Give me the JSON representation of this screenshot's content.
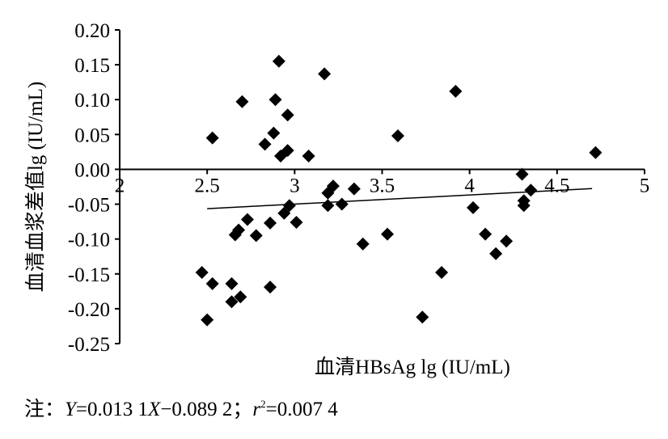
{
  "chart_data": {
    "type": "scatter",
    "x_label": "血清HBsAg lg (IU/mL)",
    "y_label": "血清血浆差值lg (IU/mL)",
    "color": "#000000",
    "x": [
      2.53,
      2.91,
      3.17,
      2.7,
      2.89,
      2.96,
      2.88,
      2.83,
      2.96,
      2.92,
      3.08,
      3.59,
      3.92,
      4.72,
      4.3,
      3.22,
      3.19,
      3.34,
      3.19,
      3.27,
      2.97,
      2.94,
      3.01,
      2.86,
      2.73,
      2.68,
      2.66,
      2.78,
      3.39,
      3.53,
      4.02,
      4.31,
      4.31,
      4.35,
      4.09,
      4.21,
      4.15,
      3.84,
      3.73,
      2.47,
      2.53,
      2.64,
      2.86,
      2.69,
      2.64,
      2.5
    ],
    "values": [
      0.045,
      0.155,
      0.137,
      0.097,
      0.1,
      0.078,
      0.052,
      0.036,
      0.027,
      0.019,
      0.019,
      0.048,
      0.112,
      0.024,
      -0.007,
      -0.024,
      -0.034,
      -0.028,
      -0.052,
      -0.05,
      -0.052,
      -0.063,
      -0.076,
      -0.077,
      -0.072,
      -0.087,
      -0.094,
      -0.095,
      -0.107,
      -0.093,
      -0.055,
      -0.045,
      -0.052,
      -0.03,
      -0.093,
      -0.103,
      -0.121,
      -0.148,
      -0.212,
      -0.148,
      -0.164,
      -0.164,
      -0.169,
      -0.183,
      -0.19,
      -0.216
    ],
    "xlim": [
      2,
      5
    ],
    "xticks": [
      2,
      2.5,
      3,
      3.5,
      4,
      4.5,
      5
    ],
    "ylim": [
      -0.25,
      0.2
    ],
    "yticks": [
      {
        "value": 0.2,
        "label": "0.20"
      },
      {
        "value": 0.15,
        "label": "0.15"
      },
      {
        "value": 0.1,
        "label": "0.10"
      },
      {
        "value": 0.05,
        "label": "0.05"
      },
      {
        "value": 0,
        "label": "0.00"
      },
      {
        "value": -0.05,
        "label": "-0.05"
      },
      {
        "value": -0.1,
        "label": "-0.10"
      },
      {
        "value": -0.15,
        "label": "-0.15"
      },
      {
        "value": -0.2,
        "label": "-0.20"
      },
      {
        "value": -0.25,
        "label": "-0.25"
      }
    ],
    "trendline": {
      "slope": 0.0131,
      "intercept": -0.0892,
      "x": [
        2.5,
        4.7
      ]
    },
    "note": {
      "prefix": "注：",
      "y": "Y",
      "eq1": "=0.013 1",
      "x": "X",
      "eq2": "−0.089 2；",
      "r": "r",
      "sup": "2",
      "eq3": "=0.007 4"
    }
  }
}
